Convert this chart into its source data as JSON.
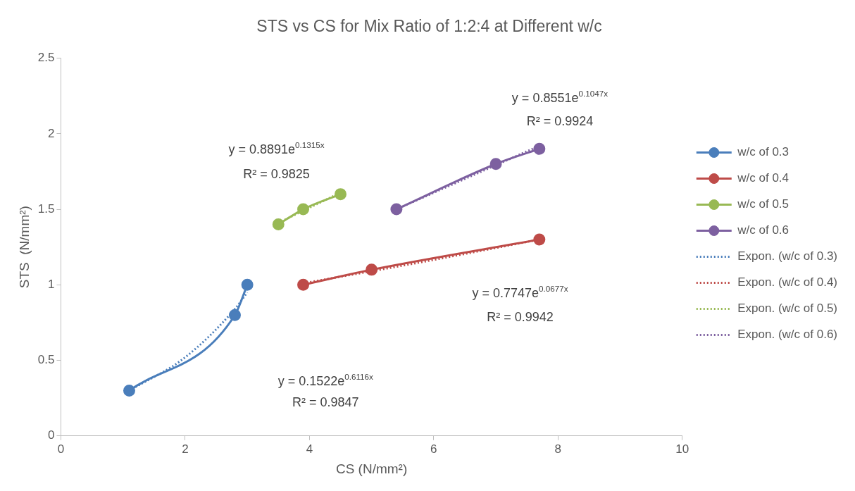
{
  "chart_data": {
    "type": "line",
    "title": "STS vs CS for Mix Ratio of 1:2:4 at Different w/c",
    "xlabel": "CS (N/mm²)",
    "ylabel": "STS  (N/mm²)",
    "xlim": [
      0,
      10
    ],
    "xticks": [
      0,
      2,
      4,
      6,
      8,
      10
    ],
    "ylim": [
      0,
      2.5
    ],
    "yticks": [
      0,
      0.5,
      1,
      1.5,
      2,
      2.5
    ],
    "grid": false,
    "legend": "right",
    "marker": "circle",
    "line_style": "solid",
    "series": [
      {
        "name": "w/c of 0.3",
        "color": "#4a7ebb",
        "x": [
          1.1,
          2.8,
          3.0
        ],
        "values": [
          0.3,
          0.8,
          1.0
        ]
      },
      {
        "name": "w/c of 0.4",
        "color": "#be4b48",
        "x": [
          3.9,
          5.0,
          7.7
        ],
        "values": [
          1.0,
          1.1,
          1.3
        ]
      },
      {
        "name": "w/c of 0.5",
        "color": "#98b954",
        "x": [
          3.5,
          3.9,
          4.5
        ],
        "values": [
          1.4,
          1.5,
          1.6
        ]
      },
      {
        "name": "w/c of 0.6",
        "color": "#7d60a0",
        "x": [
          5.4,
          7.0,
          7.7
        ],
        "values": [
          1.5,
          1.8,
          1.9
        ]
      },
      {
        "name": "Expon. (w/c of 0.3)",
        "color": "#4a7ebb",
        "marker": "none",
        "line_style": "dotted",
        "x": [
          1.1,
          2.0,
          2.8,
          3.0
        ],
        "values": [
          0.3,
          0.52,
          0.84,
          0.95
        ]
      },
      {
        "name": "Expon. (w/c of 0.4)",
        "color": "#be4b48",
        "marker": "none",
        "line_style": "dotted",
        "x": [
          3.9,
          5.8,
          7.7
        ],
        "values": [
          1.01,
          1.15,
          1.3
        ]
      },
      {
        "name": "Expon. (w/c of 0.5)",
        "color": "#98b954",
        "marker": "none",
        "line_style": "dotted",
        "x": [
          3.5,
          4.5
        ],
        "values": [
          1.41,
          1.61
        ]
      },
      {
        "name": "Expon. (w/c of 0.6)",
        "color": "#7d60a0",
        "marker": "none",
        "line_style": "dotted",
        "x": [
          5.4,
          7.7
        ],
        "values": [
          1.5,
          1.92
        ]
      }
    ],
    "annotations": [
      "y = 0.1522e$^{0.6116x}$",
      "R² = 0.9847",
      "y = 0.7747e$^{0.0677x}$",
      "R² = 0.9942",
      "y = 0.8891e$^{0.1315x}$",
      "R² = 0.9825",
      "y = 0.8551e$^{0.1047x}$",
      "R² = 0.9924"
    ]
  }
}
